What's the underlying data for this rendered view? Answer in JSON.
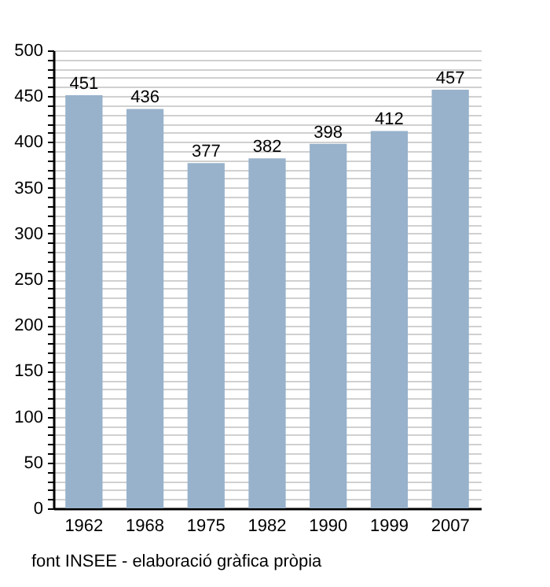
{
  "chart_data": {
    "type": "bar",
    "categories": [
      "1962",
      "1968",
      "1975",
      "1982",
      "1990",
      "1999",
      "2007"
    ],
    "values": [
      451,
      436,
      377,
      382,
      398,
      412,
      457
    ],
    "color": "#98b2cb",
    "data_labels": true,
    "grid": "y",
    "ylim": [
      0,
      500
    ],
    "yticks": [
      0,
      {
        "value": 10,
        "label": null
      },
      {
        "value": 20,
        "label": null
      },
      {
        "value": 30,
        "label": null
      },
      {
        "value": 40,
        "label": null
      },
      50,
      {
        "value": 60,
        "label": null
      },
      {
        "value": 70,
        "label": null
      },
      {
        "value": 80,
        "label": null
      },
      {
        "value": 90,
        "label": null
      },
      100,
      {
        "value": 110,
        "label": null
      },
      {
        "value": 120,
        "label": null
      },
      {
        "value": 130,
        "label": null
      },
      {
        "value": 140,
        "label": null
      },
      150,
      {
        "value": 160,
        "label": null
      },
      {
        "value": 170,
        "label": null
      },
      {
        "value": 180,
        "label": null
      },
      {
        "value": 190,
        "label": null
      },
      200,
      {
        "value": 210,
        "label": null
      },
      {
        "value": 220,
        "label": null
      },
      {
        "value": 230,
        "label": null
      },
      {
        "value": 240,
        "label": null
      },
      250,
      {
        "value": 260,
        "label": null
      },
      {
        "value": 270,
        "label": null
      },
      {
        "value": 280,
        "label": null
      },
      {
        "value": 290,
        "label": null
      },
      300,
      {
        "value": 310,
        "label": null
      },
      {
        "value": 320,
        "label": null
      },
      {
        "value": 330,
        "label": null
      },
      {
        "value": 340,
        "label": null
      },
      350,
      {
        "value": 360,
        "label": null
      },
      {
        "value": 370,
        "label": null
      },
      {
        "value": 380,
        "label": null
      },
      {
        "value": 390,
        "label": null
      },
      400,
      {
        "value": 410,
        "label": null
      },
      {
        "value": 420,
        "label": null
      },
      {
        "value": 430,
        "label": null
      },
      {
        "value": 440,
        "label": null
      },
      450,
      {
        "value": 460,
        "label": null
      },
      {
        "value": 470,
        "label": null
      },
      {
        "value": 480,
        "label": null
      },
      {
        "value": 490,
        "label": null
      },
      500
    ],
    "annotations": [
      "font INSEE - elaboració gràfica pròpia"
    ]
  }
}
